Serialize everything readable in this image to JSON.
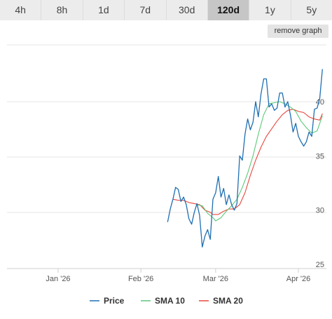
{
  "tabs": [
    {
      "label": "4h",
      "active": false
    },
    {
      "label": "8h",
      "active": false
    },
    {
      "label": "1d",
      "active": false
    },
    {
      "label": "7d",
      "active": false
    },
    {
      "label": "30d",
      "active": false
    },
    {
      "label": "120d",
      "active": true
    },
    {
      "label": "1y",
      "active": false
    },
    {
      "label": "5y",
      "active": false
    }
  ],
  "remove_graph_label": "remove graph",
  "colors": {
    "price": "#1f6fb2",
    "sma10": "#5cc97a",
    "sma20": "#e8483f",
    "grid": "#e6e6e6",
    "active_tab": "#c6c6c6"
  },
  "chart_data": {
    "type": "line",
    "x_start": "2025-12-08",
    "x_end": "2026-04-08",
    "ylim": [
      24.5,
      43.5
    ],
    "y_ticks": [
      25,
      30,
      35,
      40
    ],
    "x_ticks": [
      {
        "date": "2026-01-01",
        "label": "Jan '26"
      },
      {
        "date": "2026-02-01",
        "label": "Feb '26"
      },
      {
        "date": "2026-03-01",
        "label": "Mar '26"
      },
      {
        "date": "2026-04-01",
        "label": "Apr '26"
      }
    ],
    "grid": true,
    "legend_position": "bottom",
    "series": [
      {
        "name": "Price",
        "color_key": "price",
        "points": [
          [
            "2026-02-11",
            28.9
          ],
          [
            "2026-02-12",
            30.1
          ],
          [
            "2026-02-13",
            31.0
          ],
          [
            "2026-02-14",
            32.1
          ],
          [
            "2026-02-15",
            31.9
          ],
          [
            "2026-02-16",
            30.8
          ],
          [
            "2026-02-17",
            31.2
          ],
          [
            "2026-02-18",
            30.5
          ],
          [
            "2026-02-19",
            29.2
          ],
          [
            "2026-02-20",
            28.7
          ],
          [
            "2026-02-21",
            29.8
          ],
          [
            "2026-02-22",
            30.6
          ],
          [
            "2026-02-23",
            29.5
          ],
          [
            "2026-02-24",
            26.6
          ],
          [
            "2026-02-25",
            27.6
          ],
          [
            "2026-02-26",
            28.2
          ],
          [
            "2026-02-27",
            27.3
          ],
          [
            "2026-02-28",
            31.0
          ],
          [
            "2026-03-01",
            31.6
          ],
          [
            "2026-03-02",
            33.1
          ],
          [
            "2026-03-03",
            31.2
          ],
          [
            "2026-03-04",
            32.0
          ],
          [
            "2026-03-05",
            30.5
          ],
          [
            "2026-03-06",
            31.4
          ],
          [
            "2026-03-07",
            30.5
          ],
          [
            "2026-03-08",
            30.0
          ],
          [
            "2026-03-09",
            30.6
          ],
          [
            "2026-03-10",
            35.0
          ],
          [
            "2026-03-11",
            34.6
          ],
          [
            "2026-03-12",
            37.0
          ],
          [
            "2026-03-13",
            38.4
          ],
          [
            "2026-03-14",
            37.4
          ],
          [
            "2026-03-15",
            38.1
          ],
          [
            "2026-03-16",
            40.0
          ],
          [
            "2026-03-17",
            38.6
          ],
          [
            "2026-03-18",
            40.7
          ],
          [
            "2026-03-19",
            42.1
          ],
          [
            "2026-03-20",
            42.1
          ],
          [
            "2026-03-21",
            39.5
          ],
          [
            "2026-03-22",
            39.8
          ],
          [
            "2026-03-23",
            39.2
          ],
          [
            "2026-03-24",
            39.4
          ],
          [
            "2026-03-25",
            40.8
          ],
          [
            "2026-03-26",
            40.8
          ],
          [
            "2026-03-27",
            39.5
          ],
          [
            "2026-03-28",
            40.0
          ],
          [
            "2026-03-29",
            38.8
          ],
          [
            "2026-03-30",
            37.2
          ],
          [
            "2026-03-31",
            38.0
          ],
          [
            "2026-04-01",
            36.8
          ],
          [
            "2026-04-02",
            36.3
          ],
          [
            "2026-04-03",
            35.9
          ],
          [
            "2026-04-04",
            36.3
          ],
          [
            "2026-04-05",
            37.2
          ],
          [
            "2026-04-06",
            36.8
          ],
          [
            "2026-04-07",
            39.3
          ],
          [
            "2026-04-08",
            39.4
          ],
          [
            "2026-04-09",
            40.3
          ],
          [
            "2026-04-10",
            43.0
          ]
        ]
      },
      {
        "name": "SMA 10",
        "color_key": "sma10",
        "points": [
          [
            "2026-02-22",
            30.5
          ],
          [
            "2026-02-24",
            30.4
          ],
          [
            "2026-02-26",
            29.7
          ],
          [
            "2026-02-28",
            29.3
          ],
          [
            "2026-03-01",
            29.0
          ],
          [
            "2026-03-03",
            29.3
          ],
          [
            "2026-03-05",
            29.9
          ],
          [
            "2026-03-07",
            30.4
          ],
          [
            "2026-03-09",
            31.0
          ],
          [
            "2026-03-11",
            32.1
          ],
          [
            "2026-03-13",
            33.4
          ],
          [
            "2026-03-15",
            35.0
          ],
          [
            "2026-03-17",
            37.0
          ],
          [
            "2026-03-19",
            38.8
          ],
          [
            "2026-03-21",
            39.8
          ],
          [
            "2026-03-23",
            39.9
          ],
          [
            "2026-03-25",
            40.0
          ],
          [
            "2026-03-27",
            39.8
          ],
          [
            "2026-03-29",
            39.5
          ],
          [
            "2026-03-31",
            39.1
          ],
          [
            "2026-04-02",
            38.2
          ],
          [
            "2026-04-04",
            37.6
          ],
          [
            "2026-04-06",
            37.1
          ],
          [
            "2026-04-08",
            37.3
          ],
          [
            "2026-04-10",
            38.7
          ]
        ]
      },
      {
        "name": "SMA 20",
        "color_key": "sma20",
        "points": [
          [
            "2026-02-13",
            31.0
          ],
          [
            "2026-02-15",
            30.9
          ],
          [
            "2026-02-17",
            30.9
          ],
          [
            "2026-02-19",
            30.7
          ],
          [
            "2026-02-21",
            30.6
          ],
          [
            "2026-02-23",
            30.5
          ],
          [
            "2026-02-25",
            30.0
          ],
          [
            "2026-02-27",
            29.8
          ],
          [
            "2026-02-28",
            29.6
          ],
          [
            "2026-03-02",
            29.6
          ],
          [
            "2026-03-04",
            29.9
          ],
          [
            "2026-03-06",
            30.1
          ],
          [
            "2026-03-08",
            30.1
          ],
          [
            "2026-03-10",
            30.5
          ],
          [
            "2026-03-12",
            31.6
          ],
          [
            "2026-03-14",
            33.2
          ],
          [
            "2026-03-16",
            34.6
          ],
          [
            "2026-03-18",
            35.8
          ],
          [
            "2026-03-20",
            36.8
          ],
          [
            "2026-03-22",
            37.5
          ],
          [
            "2026-03-24",
            38.2
          ],
          [
            "2026-03-26",
            38.8
          ],
          [
            "2026-03-28",
            39.2
          ],
          [
            "2026-03-30",
            39.3
          ],
          [
            "2026-04-01",
            39.1
          ],
          [
            "2026-04-03",
            39.0
          ],
          [
            "2026-04-05",
            38.6
          ],
          [
            "2026-04-07",
            38.4
          ],
          [
            "2026-04-09",
            38.3
          ],
          [
            "2026-04-10",
            38.9
          ]
        ]
      }
    ]
  }
}
